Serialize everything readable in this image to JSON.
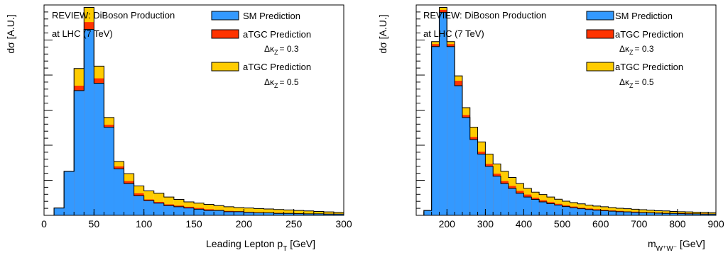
{
  "colors": {
    "sm": "#3399ff",
    "atgc03": "#ff3300",
    "atgc05": "#ffcc00",
    "line": "#000000"
  },
  "legend": {
    "header_line1": "REVIEW: DiBoson Production",
    "header_line2": "at LHC (7 TeV)",
    "sm_label": "SM Prediction",
    "atgc03_label": "aTGC Prediction",
    "atgc03_sub": "= 0.3",
    "atgc05_label": "aTGC Prediction",
    "atgc05_sub": "= 0.5",
    "delta_symbol": "Δκ",
    "delta_subscript": "Z"
  },
  "chart_data": [
    {
      "type": "bar",
      "ylabel": "dσ [A.U.]",
      "xlabel_main": "Leading Lepton p",
      "xlabel_sub": "T",
      "xlabel_unit": " [GeV]",
      "xlim": [
        0,
        300
      ],
      "ylim": [
        0,
        1.0
      ],
      "xticks": [
        0,
        50,
        100,
        150,
        200,
        250,
        300
      ],
      "bin_width": 10,
      "bin_edges_start": 10,
      "series": [
        {
          "name": "SM Prediction",
          "values": [
            0.03,
            0.18,
            0.51,
            0.76,
            0.54,
            0.36,
            0.19,
            0.13,
            0.08,
            0.06,
            0.05,
            0.04,
            0.035,
            0.03,
            0.025,
            0.02,
            0.02,
            0.015,
            0.015,
            0.012,
            0.01,
            0.01,
            0.008,
            0.008,
            0.007,
            0.006,
            0.006,
            0.005,
            0.005
          ]
        },
        {
          "name": "aTGC Prediction Δκz = 0.3",
          "values": [
            0.03,
            0.18,
            0.53,
            0.79,
            0.56,
            0.37,
            0.2,
            0.14,
            0.09,
            0.065,
            0.055,
            0.045,
            0.04,
            0.035,
            0.03,
            0.025,
            0.022,
            0.018,
            0.017,
            0.014,
            0.012,
            0.011,
            0.01,
            0.009,
            0.008,
            0.007,
            0.007,
            0.006,
            0.006
          ]
        },
        {
          "name": "aTGC Prediction Δκz = 0.5",
          "values": [
            0.03,
            0.18,
            0.6,
            0.85,
            0.61,
            0.4,
            0.22,
            0.17,
            0.12,
            0.1,
            0.09,
            0.075,
            0.065,
            0.055,
            0.05,
            0.045,
            0.04,
            0.035,
            0.032,
            0.03,
            0.028,
            0.026,
            0.024,
            0.022,
            0.02,
            0.018,
            0.016,
            0.014,
            0.012
          ]
        }
      ]
    },
    {
      "type": "bar",
      "ylabel": "dσ [A.U.]",
      "xlabel_main": "m",
      "xlabel_sub": "W⁺W⁻",
      "xlabel_unit": " [GeV]",
      "xlim": [
        120,
        900
      ],
      "ylim": [
        0,
        1.0
      ],
      "xticks": [
        200,
        300,
        400,
        500,
        600,
        700,
        800,
        900
      ],
      "bin_width": 20,
      "bin_edges_start": 120,
      "series": [
        {
          "name": "SM Prediction",
          "values": [
            0.0,
            0.02,
            0.69,
            0.83,
            0.69,
            0.53,
            0.4,
            0.31,
            0.25,
            0.2,
            0.16,
            0.13,
            0.11,
            0.09,
            0.075,
            0.065,
            0.055,
            0.048,
            0.042,
            0.036,
            0.031,
            0.027,
            0.024,
            0.021,
            0.019,
            0.017,
            0.015,
            0.014,
            0.012,
            0.011,
            0.01,
            0.009,
            0.008,
            0.008,
            0.007,
            0.006,
            0.006,
            0.005,
            0.005
          ]
        },
        {
          "name": "aTGC Prediction Δκz = 0.3",
          "values": [
            0.0,
            0.02,
            0.7,
            0.84,
            0.7,
            0.55,
            0.41,
            0.32,
            0.26,
            0.21,
            0.17,
            0.14,
            0.12,
            0.1,
            0.085,
            0.072,
            0.062,
            0.054,
            0.047,
            0.041,
            0.036,
            0.031,
            0.028,
            0.025,
            0.022,
            0.02,
            0.018,
            0.016,
            0.015,
            0.013,
            0.012,
            0.011,
            0.01,
            0.009,
            0.009,
            0.008,
            0.007,
            0.007,
            0.006
          ]
        },
        {
          "name": "aTGC Prediction Δκz = 0.5",
          "values": [
            0.0,
            0.02,
            0.71,
            0.85,
            0.71,
            0.57,
            0.44,
            0.36,
            0.3,
            0.25,
            0.21,
            0.18,
            0.155,
            0.13,
            0.11,
            0.095,
            0.085,
            0.075,
            0.066,
            0.058,
            0.052,
            0.047,
            0.042,
            0.038,
            0.035,
            0.032,
            0.029,
            0.027,
            0.025,
            0.023,
            0.021,
            0.019,
            0.018,
            0.016,
            0.015,
            0.014,
            0.013,
            0.012,
            0.011
          ]
        }
      ]
    }
  ]
}
